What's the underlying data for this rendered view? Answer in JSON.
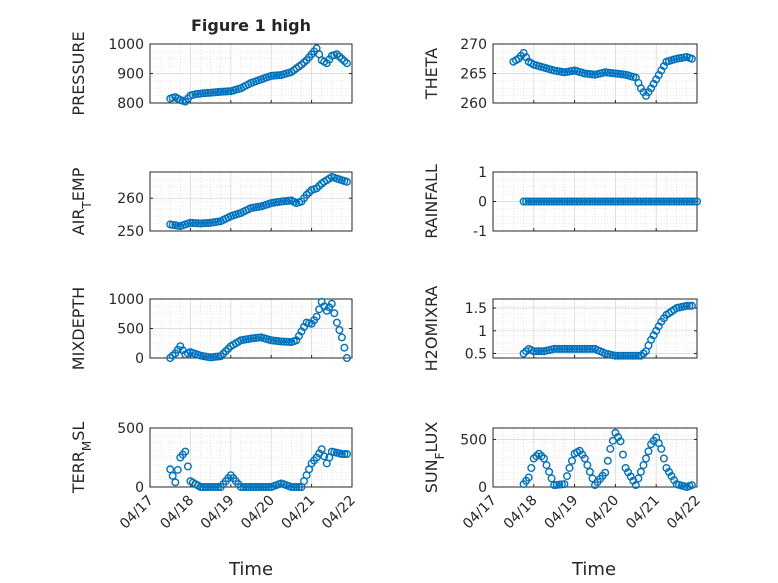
{
  "figure": {
    "title": "Figure 1 high"
  },
  "x_ticks": [
    "04/17",
    "04/18",
    "04/19",
    "04/20",
    "04/21",
    "04/22"
  ],
  "xlabel": "Time",
  "colors": {
    "marker": "#0072BD",
    "axes": "#262626",
    "grid": "#d9d9d9",
    "background": "#ffffff"
  },
  "chart_data": [
    {
      "type": "scatter",
      "ylabel": "PRESSURE",
      "ylim": [
        800,
        1000
      ],
      "yticks": [
        "800",
        "900",
        "1000"
      ],
      "xlim": [
        "04/17",
        "04/22"
      ],
      "grid": true,
      "x": [
        "04/17 12:00",
        "04/17 15:00",
        "04/17 18:00",
        "04/17 21:00",
        "04/18 00:00",
        "04/18 03:00",
        "04/18 06:00",
        "04/18 12:00",
        "04/18 18:00",
        "04/19 00:00",
        "04/19 06:00",
        "04/19 12:00",
        "04/19 18:00",
        "04/20 00:00",
        "04/20 06:00",
        "04/20 12:00",
        "04/20 18:00",
        "04/20 21:00",
        "04/21 00:00",
        "04/21 03:00",
        "04/21 06:00",
        "04/21 09:00",
        "04/21 12:00",
        "04/21 15:00",
        "04/21 18:00",
        "04/21 21:00"
      ],
      "y": [
        815,
        820,
        810,
        805,
        825,
        830,
        832,
        835,
        838,
        840,
        850,
        868,
        880,
        892,
        895,
        905,
        930,
        945,
        965,
        985,
        945,
        935,
        960,
        965,
        950,
        935
      ]
    },
    {
      "type": "scatter",
      "ylabel": "THETA",
      "ylim": [
        260,
        270
      ],
      "yticks": [
        "260",
        "265",
        "270"
      ],
      "xlim": [
        "04/17",
        "04/22"
      ],
      "grid": true,
      "x": [
        "04/17 12:00",
        "04/17 15:00",
        "04/17 18:00",
        "04/17 21:00",
        "04/18 00:00",
        "04/18 06:00",
        "04/18 12:00",
        "04/18 18:00",
        "04/19 00:00",
        "04/19 06:00",
        "04/19 12:00",
        "04/19 18:00",
        "04/20 00:00",
        "04/20 06:00",
        "04/20 12:00",
        "04/20 15:00",
        "04/20 18:00",
        "04/20 21:00",
        "04/21 00:00",
        "04/21 03:00",
        "04/21 06:00",
        "04/21 12:00",
        "04/21 18:00",
        "04/21 21:00"
      ],
      "y": [
        267,
        267.5,
        268.5,
        267,
        266.5,
        266,
        265.5,
        265.2,
        265.5,
        265,
        264.8,
        265.2,
        265,
        264.8,
        264.3,
        262.5,
        261.2,
        262.5,
        264,
        265.5,
        267,
        267.5,
        267.8,
        267.5
      ]
    },
    {
      "type": "scatter",
      "ylabel": "AIR_TEMP",
      "ylim": [
        250,
        268
      ],
      "yticks": [
        "250",
        "260"
      ],
      "xlim": [
        "04/17",
        "04/22"
      ],
      "grid": true,
      "x": [
        "04/17 12:00",
        "04/17 18:00",
        "04/18 00:00",
        "04/18 06:00",
        "04/18 12:00",
        "04/18 18:00",
        "04/19 00:00",
        "04/19 06:00",
        "04/19 12:00",
        "04/19 18:00",
        "04/20 00:00",
        "04/20 06:00",
        "04/20 12:00",
        "04/20 15:00",
        "04/20 18:00",
        "04/20 21:00",
        "04/21 00:00",
        "04/21 03:00",
        "04/21 06:00",
        "04/21 09:00",
        "04/21 12:00",
        "04/21 18:00",
        "04/21 21:00"
      ],
      "y": [
        252,
        251.5,
        252.5,
        252.3,
        252.5,
        253,
        254.5,
        255.5,
        257,
        257.5,
        258.5,
        259,
        259.3,
        258.5,
        259,
        261,
        262.5,
        263,
        264.5,
        265.5,
        266.5,
        265.5,
        265
      ]
    },
    {
      "type": "scatter",
      "ylabel": "RAINFALL",
      "ylim": [
        -1,
        1
      ],
      "yticks": [
        "-1",
        "0",
        "1"
      ],
      "xlim": [
        "04/17",
        "04/22"
      ],
      "grid": true,
      "x": [
        "04/17 18:00",
        "04/18 00:00",
        "04/18 12:00",
        "04/19 00:00",
        "04/19 12:00",
        "04/20 00:00",
        "04/20 12:00",
        "04/21 00:00",
        "04/21 12:00",
        "04/22 00:00"
      ],
      "y": [
        0,
        0,
        0,
        0,
        0,
        0,
        0,
        0,
        0,
        0
      ]
    },
    {
      "type": "scatter",
      "ylabel": "MIXDEPTH",
      "ylim": [
        0,
        1000
      ],
      "yticks": [
        "0",
        "500",
        "1000"
      ],
      "xlim": [
        "04/17",
        "04/22"
      ],
      "grid": true,
      "x": [
        "04/17 12:00",
        "04/17 15:00",
        "04/17 18:00",
        "04/17 21:00",
        "04/18 00:00",
        "04/18 06:00",
        "04/18 12:00",
        "04/18 18:00",
        "04/19 00:00",
        "04/19 06:00",
        "04/19 12:00",
        "04/19 18:00",
        "04/20 00:00",
        "04/20 06:00",
        "04/20 12:00",
        "04/20 15:00",
        "04/20 18:00",
        "04/20 21:00",
        "04/21 00:00",
        "04/21 03:00",
        "04/21 06:00",
        "04/21 09:00",
        "04/21 12:00",
        "04/21 15:00",
        "04/21 18:00",
        "04/21 21:00"
      ],
      "y": [
        0,
        80,
        200,
        60,
        100,
        40,
        10,
        30,
        200,
        300,
        330,
        350,
        300,
        280,
        270,
        300,
        450,
        600,
        580,
        700,
        950,
        800,
        920,
        600,
        350,
        0
      ]
    },
    {
      "type": "scatter",
      "ylabel": "H2OMIXRA",
      "ylim": [
        0.4,
        1.7
      ],
      "yticks": [
        "0.5",
        "1",
        "1.5"
      ],
      "xlim": [
        "04/17",
        "04/22"
      ],
      "grid": true,
      "x": [
        "04/17 18:00",
        "04/17 21:00",
        "04/18 00:00",
        "04/18 06:00",
        "04/18 12:00",
        "04/18 18:00",
        "04/19 00:00",
        "04/19 06:00",
        "04/19 12:00",
        "04/19 18:00",
        "04/20 00:00",
        "04/20 06:00",
        "04/20 12:00",
        "04/20 15:00",
        "04/20 18:00",
        "04/20 21:00",
        "04/21 00:00",
        "04/21 03:00",
        "04/21 06:00",
        "04/21 12:00",
        "04/21 18:00",
        "04/21 21:00"
      ],
      "y": [
        0.5,
        0.6,
        0.55,
        0.55,
        0.6,
        0.6,
        0.6,
        0.6,
        0.6,
        0.5,
        0.45,
        0.45,
        0.45,
        0.45,
        0.55,
        0.8,
        1.0,
        1.2,
        1.35,
        1.5,
        1.55,
        1.55
      ]
    },
    {
      "type": "scatter",
      "ylabel": "TERR_MSL",
      "ylim": [
        0,
        500
      ],
      "yticks": [
        "0",
        "500"
      ],
      "xlim": [
        "04/17",
        "04/22"
      ],
      "grid": true,
      "x": [
        "04/17 12:00",
        "04/17 15:00",
        "04/17 18:00",
        "04/17 21:00",
        "04/18 00:00",
        "04/18 06:00",
        "04/18 12:00",
        "04/18 18:00",
        "04/19 00:00",
        "04/19 06:00",
        "04/19 12:00",
        "04/19 18:00",
        "04/20 00:00",
        "04/20 06:00",
        "04/20 12:00",
        "04/20 18:00",
        "04/21 00:00",
        "04/21 03:00",
        "04/21 06:00",
        "04/21 09:00",
        "04/21 12:00",
        "04/21 18:00",
        "04/21 21:00"
      ],
      "y": [
        150,
        40,
        250,
        300,
        50,
        0,
        0,
        0,
        100,
        0,
        0,
        0,
        0,
        30,
        0,
        0,
        200,
        250,
        320,
        200,
        300,
        280,
        280
      ]
    },
    {
      "type": "scatter",
      "ylabel": "SUN_FLUX",
      "ylim": [
        0,
        620
      ],
      "yticks": [
        "0",
        "500"
      ],
      "xlim": [
        "04/17",
        "04/22"
      ],
      "grid": true,
      "x": [
        "04/17 18:00",
        "04/17 21:00",
        "04/18 00:00",
        "04/18 03:00",
        "04/18 06:00",
        "04/18 12:00",
        "04/18 18:00",
        "04/18 21:00",
        "04/19 00:00",
        "04/19 03:00",
        "04/19 06:00",
        "04/19 12:00",
        "04/19 18:00",
        "04/19 21:00",
        "04/20 00:00",
        "04/20 03:00",
        "04/20 06:00",
        "04/20 12:00",
        "04/20 18:00",
        "04/20 21:00",
        "04/21 00:00",
        "04/21 03:00",
        "04/21 06:00",
        "04/21 12:00",
        "04/21 18:00",
        "04/21 21:00"
      ],
      "y": [
        30,
        100,
        300,
        350,
        300,
        20,
        30,
        200,
        350,
        380,
        300,
        20,
        150,
        400,
        570,
        480,
        200,
        20,
        300,
        450,
        520,
        400,
        200,
        30,
        0,
        20
      ]
    }
  ]
}
